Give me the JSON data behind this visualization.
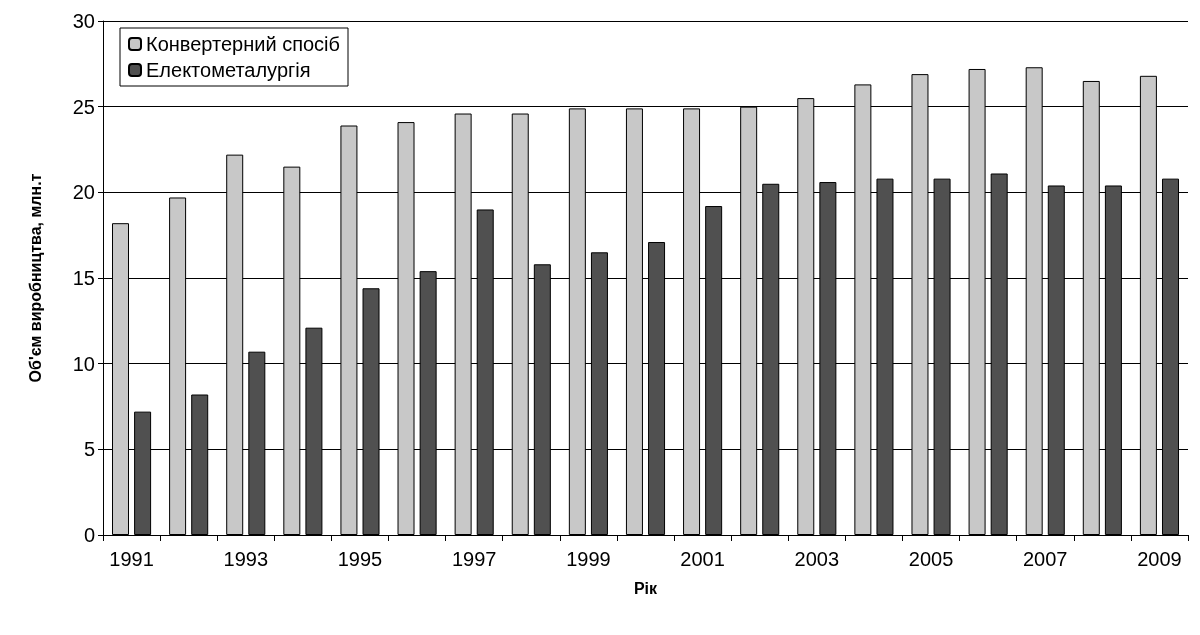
{
  "chart_data": {
    "type": "bar",
    "xlabel": "Рік",
    "ylabel": "Об'єм виробництва, млн.т",
    "categories": [
      "1991",
      null,
      "1993",
      null,
      "1995",
      null,
      "1997",
      null,
      "1999",
      null,
      "2001",
      null,
      "2003",
      null,
      "2005",
      null,
      "2007",
      null,
      "2009"
    ],
    "series": [
      {
        "name": "Конвертерний спосіб",
        "color": "#c8c8c8",
        "values": [
          18.2,
          19.7,
          22.2,
          21.5,
          23.9,
          24.1,
          24.6,
          24.6,
          24.9,
          24.9,
          24.9,
          25.0,
          25.5,
          26.3,
          26.9,
          27.2,
          27.3,
          26.5,
          26.8
        ]
      },
      {
        "name": "Електометалургія",
        "color": "#505050",
        "values": [
          7.2,
          8.2,
          10.7,
          12.1,
          14.4,
          15.4,
          19.0,
          15.8,
          16.5,
          17.1,
          19.2,
          20.5,
          20.6,
          20.8,
          20.8,
          21.1,
          20.4,
          20.4,
          20.8
        ]
      }
    ],
    "ylim": [
      0,
      30
    ],
    "yticks": [
      0,
      5,
      10,
      15,
      20,
      25,
      30
    ],
    "grid": "y",
    "legend": "top left"
  }
}
